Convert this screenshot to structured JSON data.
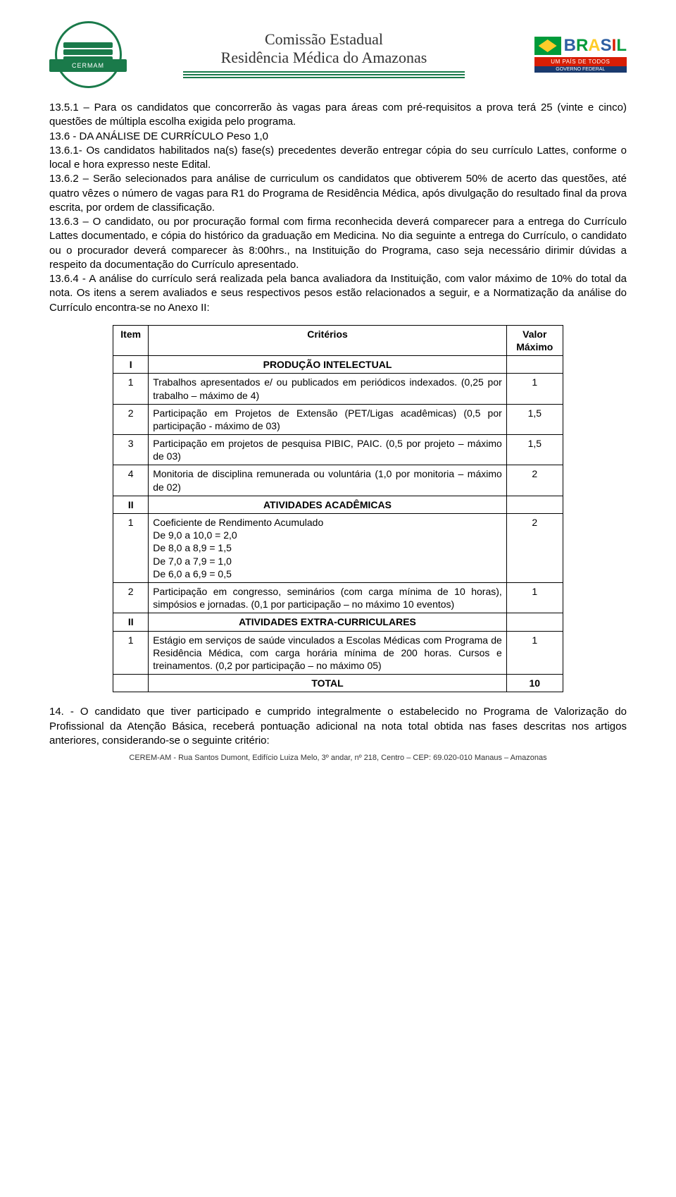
{
  "header": {
    "org_top": "Comissão Estadual",
    "org_bottom": "Residência Médica do Amazonas",
    "left_logo_band": "CERMAM",
    "brasil_sub1": "UM PAÍS DE TODOS",
    "brasil_sub2": "GOVERNO FEDERAL"
  },
  "paragraphs": {
    "p1": "13.5.1 – Para os candidatos que concorrerão às vagas para áreas com pré-requisitos a prova terá 25 (vinte e cinco) questões de múltipla escolha exigida pelo programa.",
    "p2": "13.6 - DA ANÁLISE DE CURRÍCULO Peso 1,0",
    "p3": "13.6.1- Os candidatos habilitados na(s) fase(s) precedentes deverão entregar cópia do seu currículo Lattes, conforme o local e hora expresso neste Edital.",
    "p4": "13.6.2 – Serão selecionados para análise de curriculum os candidatos que obtiverem 50% de acerto das questões, até quatro vêzes o número de vagas para R1 do Programa de Residência Médica, após divulgação do resultado final da prova escrita, por ordem de classificação.",
    "p5": "13.6.3 – O candidato, ou por procuração formal com firma reconhecida deverá comparecer para a entrega do Currículo Lattes documentado, e cópia do histórico da graduação em Medicina. No dia seguinte a entrega do Currículo, o candidato ou o procurador deverá comparecer às 8:00hrs., na Instituição do Programa, caso seja necessário dirimir dúvidas a respeito da documentação do Currículo apresentado.",
    "p6": "13.6.4 - A análise do currículo será realizada pela banca avaliadora da Instituição, com valor máximo de 10% do total da nota. Os itens a serem avaliados e seus respectivos pesos estão relacionados a seguir, e a Normatização da análise do Currículo encontra-se no Anexo II:",
    "p7": "14. - O candidato que tiver participado e cumprido integralmente o estabelecido no Programa de Valorização do Profissional da Atenção Básica, receberá pontuação adicional na nota total obtida nas fases descritas nos artigos anteriores, considerando-se o seguinte critério:"
  },
  "table": {
    "header": {
      "item": "Item",
      "criterios": "Critérios",
      "valor": "Valor Máximo"
    },
    "section1": {
      "num": "I",
      "title": "PRODUÇÃO INTELECTUAL"
    },
    "rows1": [
      {
        "n": "1",
        "text": "Trabalhos apresentados e/ ou publicados em periódicos indexados. (0,25 por trabalho – máximo de 4)",
        "val": "1"
      },
      {
        "n": "2",
        "text": "Participação em Projetos de Extensão (PET/Ligas acadêmicas) (0,5 por participação - máximo de 03)",
        "val": "1,5"
      },
      {
        "n": "3",
        "text": "Participação em projetos de pesquisa PIBIC, PAIC. (0,5 por projeto – máximo de 03)",
        "val": "1,5"
      },
      {
        "n": "4",
        "text": "Monitoria de disciplina remunerada ou voluntária (1,0 por monitoria – máximo de 02)",
        "val": "2"
      }
    ],
    "section2": {
      "num": "II",
      "title": "ATIVIDADES ACADÊMICAS"
    },
    "rows2": [
      {
        "n": "1",
        "text": "Coeficiente de Rendimento Acumulado\nDe 9,0 a 10,0 = 2,0\nDe 8,0 a 8,9 = 1,5\nDe 7,0 a 7,9 = 1,0\nDe 6,0 a 6,9 = 0,5",
        "val": "2"
      },
      {
        "n": "2",
        "text": "Participação em congresso, seminários (com carga mínima de 10 horas), simpósios e jornadas. (0,1 por participação – no máximo 10 eventos)",
        "val": "1"
      }
    ],
    "section3": {
      "num": "II",
      "title": "ATIVIDADES EXTRA-CURRICULARES"
    },
    "rows3": [
      {
        "n": "1",
        "text": "Estágio em serviços de saúde vinculados a Escolas Médicas com Programa de Residência Médica, com carga horária mínima de 200 horas. Cursos e treinamentos. (0,2 por participação – no máximo 05)",
        "val": "1"
      }
    ],
    "total": {
      "label": "TOTAL",
      "val": "10"
    }
  },
  "footer": "CEREM-AM - Rua Santos Dumont, Edifício Luiza Melo, 3º andar, nº 218, Centro – CEP: 69.020-010 Manaus – Amazonas"
}
